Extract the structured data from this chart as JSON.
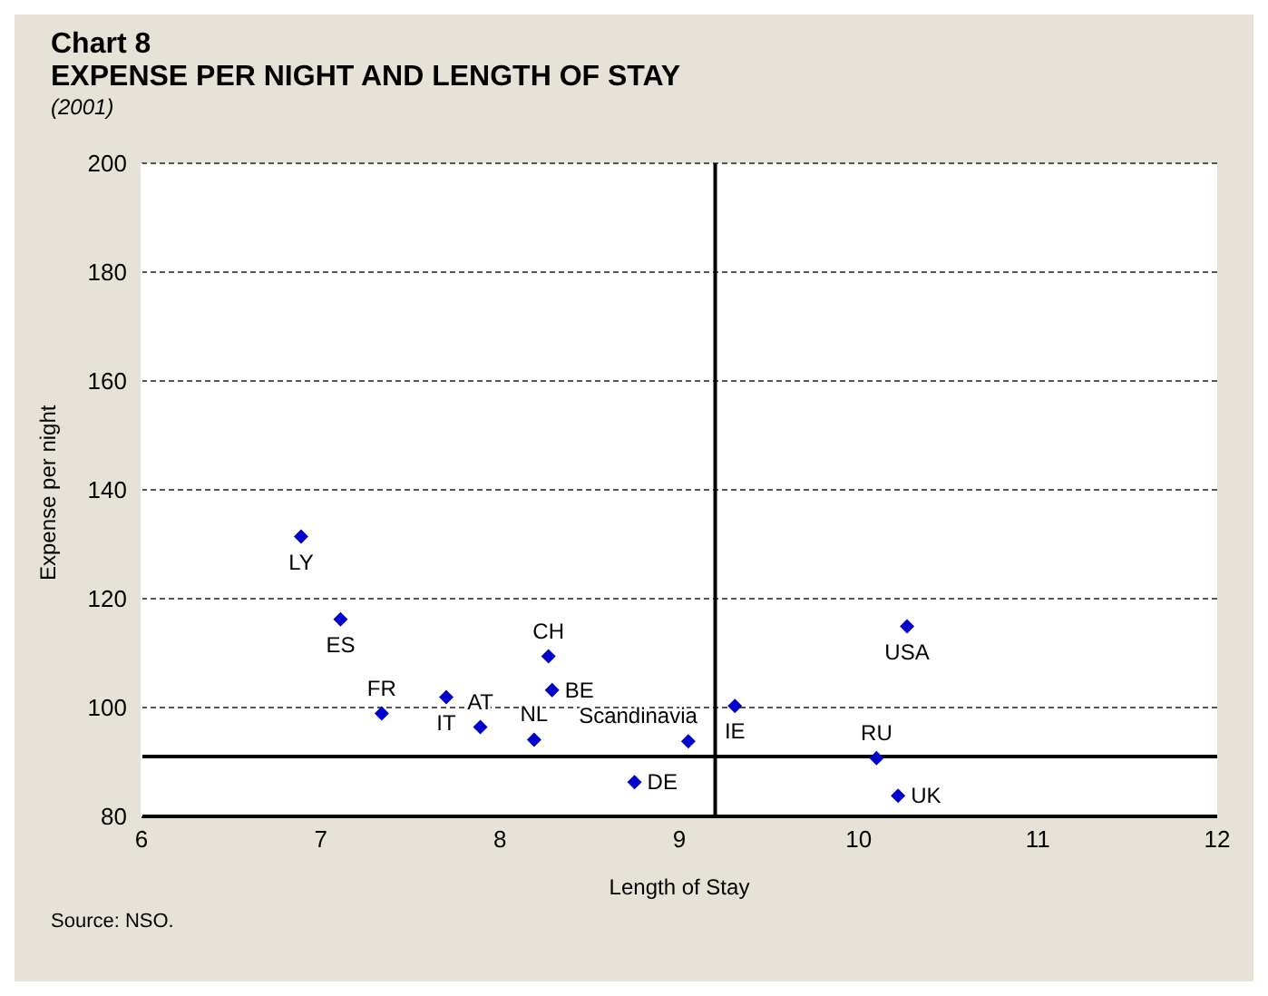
{
  "chart_data": {
    "type": "scatter",
    "title": "Chart 8\nEXPENSE PER NIGHT AND LENGTH OF STAY",
    "subtitle": "(2001)",
    "xlabel": "Length of Stay",
    "ylabel": "Expense per night",
    "x": [
      6.89,
      7.11,
      7.34,
      7.7,
      7.89,
      8.19,
      8.27,
      8.29,
      8.75,
      9.05,
      9.31,
      10.1,
      10.22,
      10.27
    ],
    "series": [
      {
        "color": "#0000cc",
        "values": [
          131.4,
          116.2,
          98.9,
          101.9,
          96.4,
          94.1,
          109.4,
          103.2,
          86.3,
          93.8,
          100.3,
          90.7,
          83.8,
          114.9
        ]
      }
    ],
    "marker": "diamond",
    "grid": "y",
    "legend": false,
    "xlim": [
      6,
      12
    ],
    "xticks": [
      6,
      7,
      8,
      9,
      10,
      11,
      12
    ],
    "ylim": [
      80,
      200
    ],
    "yticks": [
      80,
      100,
      120,
      140,
      160,
      180,
      200
    ],
    "ref_lines": [
      {
        "axis": "x",
        "value": 9.2,
        "color": "#000000"
      },
      {
        "axis": "y",
        "value": 91,
        "color": "#000000"
      }
    ],
    "annotations": [
      "Source: NSO.",
      {
        "text": "LY",
        "x": 6.89,
        "y": 131.4
      },
      {
        "text": "ES",
        "x": 7.11,
        "y": 116.2
      },
      {
        "text": "FR",
        "x": 7.34,
        "y": 98.9
      },
      {
        "text": "IT",
        "x": 7.7,
        "y": 101.9
      },
      {
        "text": "AT",
        "x": 7.89,
        "y": 96.4
      },
      {
        "text": "NL",
        "x": 8.19,
        "y": 94.1
      },
      {
        "text": "CH",
        "x": 8.27,
        "y": 109.4
      },
      {
        "text": "BE",
        "x": 8.29,
        "y": 103.2
      },
      {
        "text": "DE",
        "x": 8.75,
        "y": 86.3
      },
      {
        "text": "Scandinavia",
        "x": 9.05,
        "y": 93.8
      },
      {
        "text": "IE",
        "x": 9.31,
        "y": 100.3
      },
      {
        "text": "RU",
        "x": 10.1,
        "y": 90.7
      },
      {
        "text": "UK",
        "x": 10.22,
        "y": 83.8
      },
      {
        "text": "USA",
        "x": 10.27,
        "y": 114.9
      }
    ]
  }
}
